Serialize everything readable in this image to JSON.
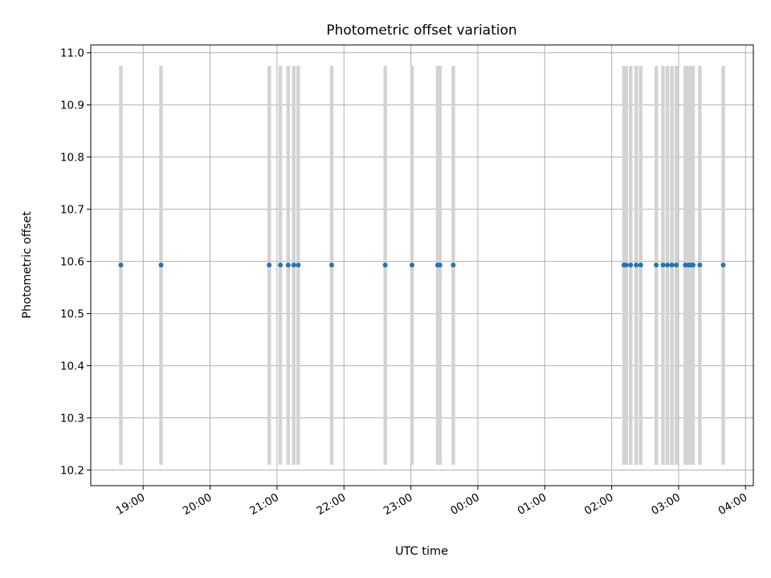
{
  "chart_data": {
    "type": "scatter",
    "title": "Photometric offset variation",
    "xlabel": "UTC time",
    "ylabel": "Photometric offset",
    "x_ticks": [
      "19:00",
      "20:00",
      "21:00",
      "22:00",
      "23:00",
      "00:00",
      "01:00",
      "02:00",
      "03:00",
      "04:00"
    ],
    "y_ticks": [
      "10.2",
      "10.3",
      "10.4",
      "10.5",
      "10.6",
      "10.7",
      "10.8",
      "10.9",
      "11.0"
    ],
    "xlim": [
      "18:13",
      "04:07"
    ],
    "ylim": [
      10.17,
      11.015
    ],
    "grid": true,
    "vline_range": [
      10.21,
      10.975
    ],
    "vline_color": "#d3d3d3",
    "point_color": "#1f77b4",
    "points": [
      {
        "t": "18:40",
        "y": 10.593
      },
      {
        "t": "19:16",
        "y": 10.593
      },
      {
        "t": "20:53",
        "y": 10.593
      },
      {
        "t": "21:03",
        "y": 10.593
      },
      {
        "t": "21:10",
        "y": 10.593
      },
      {
        "t": "21:15",
        "y": 10.593
      },
      {
        "t": "21:19",
        "y": 10.593
      },
      {
        "t": "21:49",
        "y": 10.593
      },
      {
        "t": "22:37",
        "y": 10.593
      },
      {
        "t": "23:01",
        "y": 10.593
      },
      {
        "t": "23:24",
        "y": 10.593
      },
      {
        "t": "23:26",
        "y": 10.593
      },
      {
        "t": "23:38",
        "y": 10.593
      },
      {
        "t": "02:11",
        "y": 10.593
      },
      {
        "t": "02:13",
        "y": 10.593
      },
      {
        "t": "02:17",
        "y": 10.593
      },
      {
        "t": "02:22",
        "y": 10.593
      },
      {
        "t": "02:26",
        "y": 10.593
      },
      {
        "t": "02:40",
        "y": 10.593
      },
      {
        "t": "02:46",
        "y": 10.593
      },
      {
        "t": "02:50",
        "y": 10.593
      },
      {
        "t": "02:54",
        "y": 10.593
      },
      {
        "t": "02:58",
        "y": 10.593
      },
      {
        "t": "03:06",
        "y": 10.593
      },
      {
        "t": "03:09",
        "y": 10.593
      },
      {
        "t": "03:11",
        "y": 10.593
      },
      {
        "t": "03:13",
        "y": 10.593
      },
      {
        "t": "03:19",
        "y": 10.593
      },
      {
        "t": "03:40",
        "y": 10.593
      }
    ]
  }
}
